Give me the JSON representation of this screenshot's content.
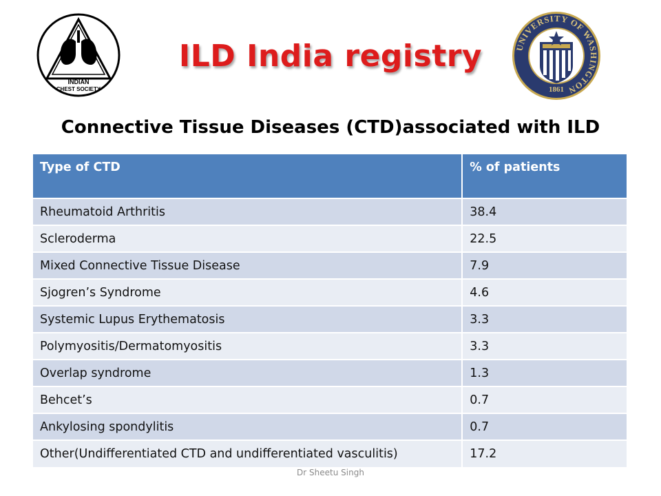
{
  "header": {
    "title": "ILD India registry",
    "subtitle": "Connective Tissue Diseases (CTD)associated with ILD"
  },
  "logos": {
    "left": {
      "text_line1": "INDIAN",
      "text_line2": "CHEST SOCIETY",
      "icon": "lungs-icon"
    },
    "right": {
      "text": "UNIVERSITY OF WASHINGTON",
      "year": "1861",
      "icon": "university-seal-icon"
    }
  },
  "table": {
    "headers": [
      "Type of CTD",
      "% of patients"
    ],
    "rows": [
      [
        "Rheumatoid Arthritis",
        "38.4"
      ],
      [
        "Scleroderma",
        "22.5"
      ],
      [
        "Mixed Connective Tissue Disease",
        "7.9"
      ],
      [
        "Sjogren’s Syndrome",
        "4.6"
      ],
      [
        "Systemic Lupus Erythematosis",
        "3.3"
      ],
      [
        "Polymyositis/Dermatomyositis",
        "3.3"
      ],
      [
        "Overlap syndrome",
        "1.3"
      ],
      [
        "Behcet’s",
        "0.7"
      ],
      [
        "Ankylosing spondylitis",
        "0.7"
      ],
      [
        "Other(Undifferentiated CTD and undifferentiated vasculitis)",
        "17.2"
      ]
    ]
  },
  "footer": {
    "author": "Dr Sheetu Singh"
  },
  "colors": {
    "title": "#dd1c1c",
    "header_bg": "#4f81bd",
    "row_odd": "#d0d8e8",
    "row_even": "#e9edf4",
    "seal_navy": "#2a3a6e",
    "seal_gold": "#c8a951"
  }
}
